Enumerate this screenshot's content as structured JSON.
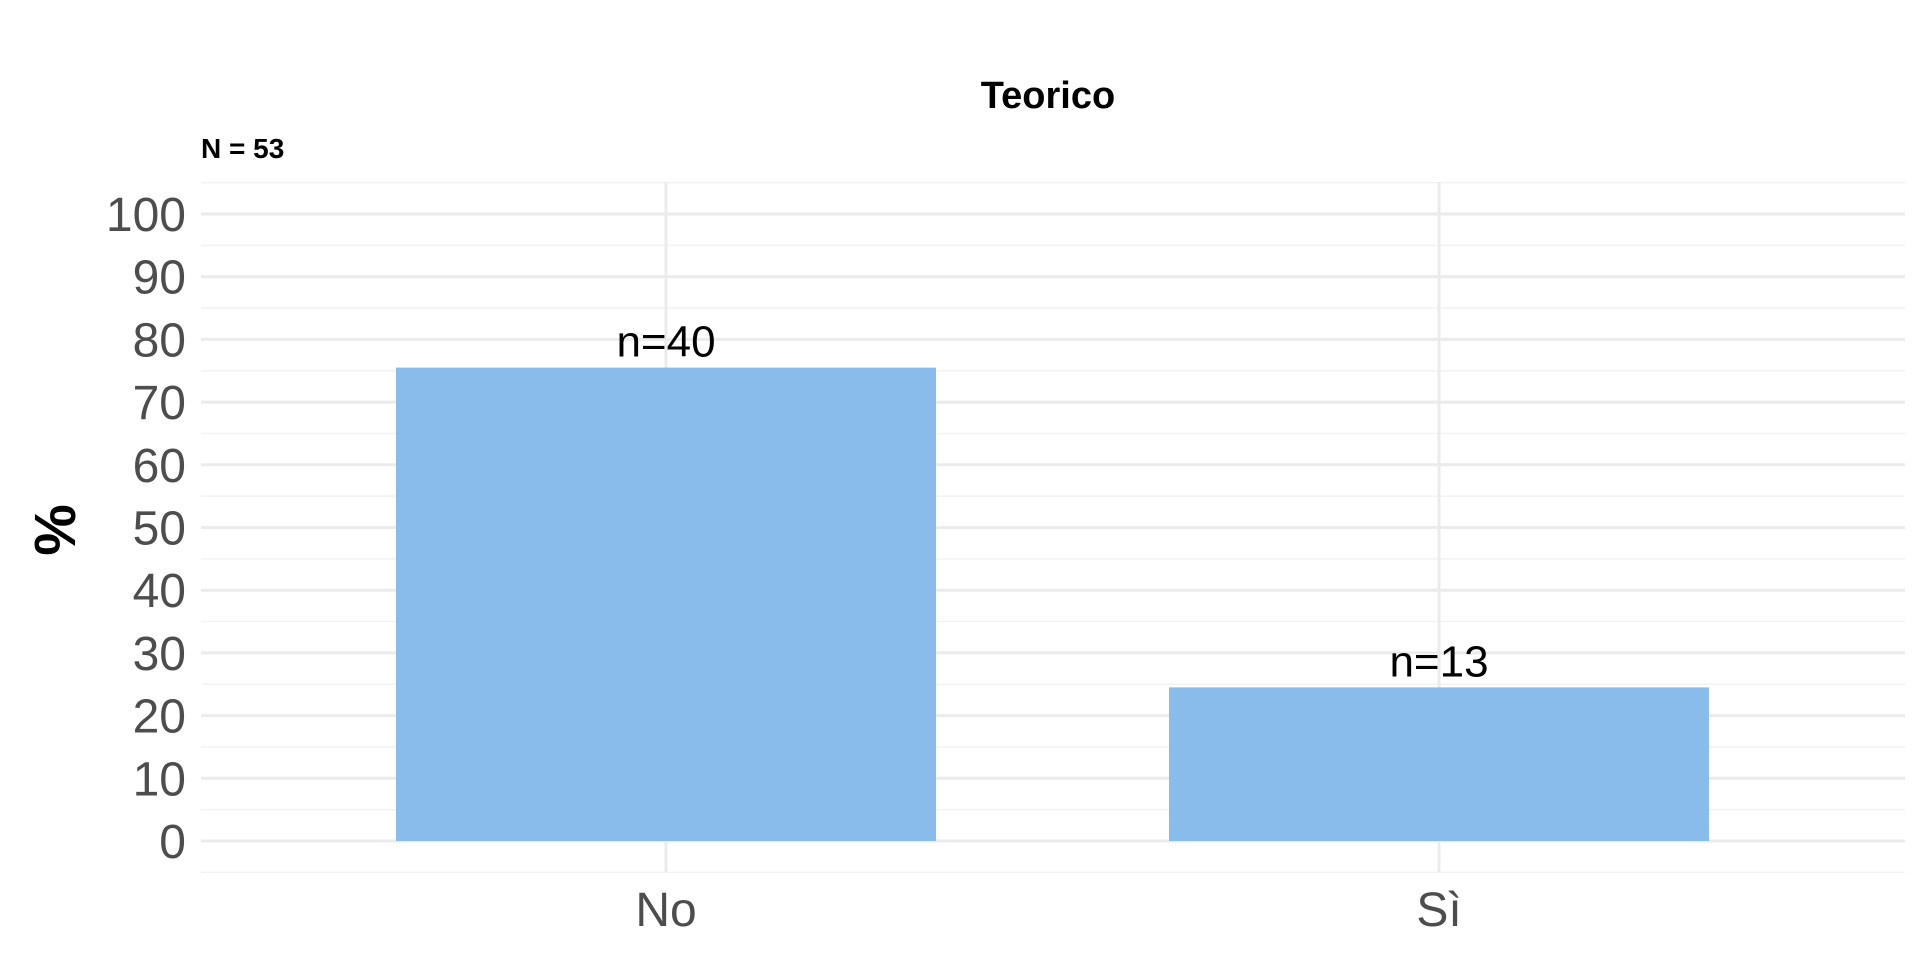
{
  "chart_data": {
    "type": "bar",
    "title": "Teorico",
    "subtitle": "N = 53",
    "xlabel": "",
    "ylabel": "%",
    "categories": [
      "No",
      "Sì"
    ],
    "values": [
      75.5,
      24.5
    ],
    "data_labels": [
      "n=40",
      "n=13"
    ],
    "ylim": [
      0,
      100
    ],
    "yticks": [
      0,
      10,
      20,
      30,
      40,
      50,
      60,
      70,
      80,
      90,
      100
    ],
    "grid": true,
    "legend": "none",
    "bar_color": "#89BCEA"
  }
}
